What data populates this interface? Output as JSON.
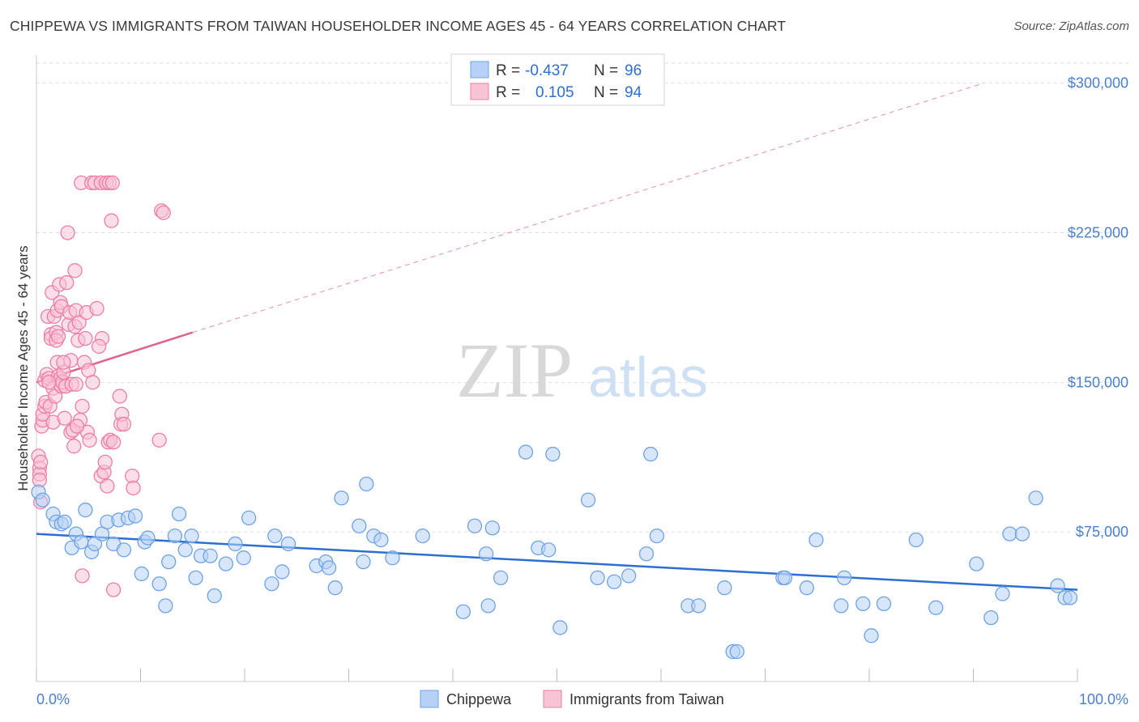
{
  "title": "CHIPPEWA VS IMMIGRANTS FROM TAIWAN HOUSEHOLDER INCOME AGES 45 - 64 YEARS CORRELATION CHART",
  "source": "Source: ZipAtlas.com",
  "watermark": {
    "zip": "ZIP",
    "atlas": "atlas"
  },
  "colors": {
    "blue": "#6fa3e8",
    "blue_fill": "#b6d1f5",
    "blue_line": "#2c6fd1",
    "pink": "#ee7fa3",
    "pink_fill": "#f8c3d5",
    "pink_line": "#e0618c",
    "grid": "#dedede",
    "axis_text": "#4a7fcf"
  },
  "legend": {
    "r_label": "R =",
    "n_label": "N =",
    "rows": [
      {
        "series": "Chippewa",
        "r": "-0.437",
        "n": "96"
      },
      {
        "series": "Immigrants from Taiwan",
        "r": "0.105",
        "n": "94"
      }
    ]
  },
  "bottom_legend": [
    "Chippewa",
    "Immigrants from Taiwan"
  ],
  "chart_data": {
    "type": "scatter",
    "xlabel": "",
    "ylabel": "Householder Income Ages 45 - 64 years",
    "xlim": [
      0,
      100
    ],
    "ylim": [
      0,
      310000
    ],
    "x_tick_labels": {
      "left": "0.0%",
      "right": "100.0%"
    },
    "y_ticks": [
      {
        "value": 75000,
        "label": "$75,000"
      },
      {
        "value": 150000,
        "label": "$150,000"
      },
      {
        "value": 225000,
        "label": "$225,000"
      },
      {
        "value": 300000,
        "label": "$300,000"
      }
    ],
    "series": [
      {
        "name": "Chippewa",
        "r": -0.437,
        "n": 96,
        "trend": {
          "x": [
            0,
            100
          ],
          "y": [
            74000,
            46000
          ],
          "dashed_extension": false
        },
        "points": [
          [
            0.2,
            95000
          ],
          [
            0.6,
            91000
          ],
          [
            1.6,
            84000
          ],
          [
            1.9,
            80000
          ],
          [
            2.4,
            79000
          ],
          [
            2.7,
            80000
          ],
          [
            3.4,
            67000
          ],
          [
            3.8,
            74000
          ],
          [
            4.3,
            70000
          ],
          [
            4.7,
            86000
          ],
          [
            5.3,
            65000
          ],
          [
            5.6,
            69000
          ],
          [
            6.3,
            74000
          ],
          [
            6.8,
            80000
          ],
          [
            7.4,
            69000
          ],
          [
            7.9,
            81000
          ],
          [
            8.4,
            66000
          ],
          [
            8.8,
            82000
          ],
          [
            9.5,
            83000
          ],
          [
            10.1,
            54000
          ],
          [
            10.4,
            70000
          ],
          [
            10.7,
            72000
          ],
          [
            11.8,
            49000
          ],
          [
            12.4,
            38000
          ],
          [
            12.7,
            60000
          ],
          [
            13.3,
            73000
          ],
          [
            13.7,
            84000
          ],
          [
            14.3,
            66000
          ],
          [
            14.9,
            73000
          ],
          [
            15.3,
            52000
          ],
          [
            15.8,
            63000
          ],
          [
            16.7,
            63000
          ],
          [
            17.1,
            43000
          ],
          [
            18.2,
            59000
          ],
          [
            19.1,
            69000
          ],
          [
            19.9,
            62000
          ],
          [
            20.4,
            82000
          ],
          [
            22.6,
            49000
          ],
          [
            22.9,
            73000
          ],
          [
            23.6,
            55000
          ],
          [
            24.2,
            69000
          ],
          [
            26.9,
            58000
          ],
          [
            27.8,
            60000
          ],
          [
            28.1,
            57000
          ],
          [
            28.7,
            47000
          ],
          [
            29.3,
            92000
          ],
          [
            31.0,
            78000
          ],
          [
            31.4,
            60000
          ],
          [
            31.7,
            99000
          ],
          [
            32.4,
            73000
          ],
          [
            33.1,
            71000
          ],
          [
            34.2,
            62000
          ],
          [
            37.1,
            73000
          ],
          [
            41.0,
            35000
          ],
          [
            42.1,
            78000
          ],
          [
            43.2,
            64000
          ],
          [
            43.4,
            38000
          ],
          [
            43.8,
            77000
          ],
          [
            44.6,
            52000
          ],
          [
            48.2,
            67000
          ],
          [
            49.2,
            66000
          ],
          [
            49.6,
            114000
          ],
          [
            50.3,
            27000
          ],
          [
            53.0,
            91000
          ],
          [
            53.9,
            52000
          ],
          [
            55.5,
            50000
          ],
          [
            56.9,
            53000
          ],
          [
            58.6,
            64000
          ],
          [
            59.6,
            73000
          ],
          [
            62.6,
            38000
          ],
          [
            63.6,
            38000
          ],
          [
            66.1,
            47000
          ],
          [
            66.9,
            15000
          ],
          [
            67.3,
            15000
          ],
          [
            71.7,
            52000
          ],
          [
            71.9,
            52000
          ],
          [
            74.0,
            47000
          ],
          [
            74.9,
            71000
          ],
          [
            77.3,
            38000
          ],
          [
            77.6,
            52000
          ],
          [
            79.4,
            39000
          ],
          [
            80.2,
            23000
          ],
          [
            81.4,
            39000
          ],
          [
            84.5,
            71000
          ],
          [
            86.4,
            37000
          ],
          [
            90.3,
            59000
          ],
          [
            91.7,
            32000
          ],
          [
            92.8,
            44000
          ],
          [
            93.5,
            74000
          ],
          [
            94.7,
            74000
          ],
          [
            96.0,
            92000
          ],
          [
            98.1,
            48000
          ],
          [
            98.8,
            42000
          ],
          [
            99.3,
            42000
          ],
          [
            47.0,
            115000
          ],
          [
            59.0,
            114000
          ]
        ]
      },
      {
        "name": "Immigrants from Taiwan",
        "r": 0.105,
        "n": 94,
        "trend": {
          "x": [
            0,
            15
          ],
          "y": [
            150000,
            175000
          ],
          "dashed_extension": true,
          "extension_to": [
            91,
            300000
          ]
        },
        "points": [
          [
            0.2,
            113000
          ],
          [
            0.3,
            107000
          ],
          [
            0.3,
            104000
          ],
          [
            0.3,
            101000
          ],
          [
            0.4,
            90000
          ],
          [
            0.5,
            128000
          ],
          [
            0.6,
            131000
          ],
          [
            0.6,
            134000
          ],
          [
            0.8,
            138000
          ],
          [
            0.8,
            151000
          ],
          [
            0.9,
            140000
          ],
          [
            1.0,
            154000
          ],
          [
            1.1,
            183000
          ],
          [
            1.2,
            152000
          ],
          [
            1.3,
            138000
          ],
          [
            1.4,
            174000
          ],
          [
            1.4,
            172000
          ],
          [
            1.5,
            195000
          ],
          [
            1.6,
            147000
          ],
          [
            1.6,
            130000
          ],
          [
            1.7,
            183000
          ],
          [
            1.8,
            143000
          ],
          [
            1.9,
            175000
          ],
          [
            1.9,
            171000
          ],
          [
            2.0,
            160000
          ],
          [
            2.0,
            186000
          ],
          [
            2.1,
            153000
          ],
          [
            2.1,
            173000
          ],
          [
            2.2,
            199000
          ],
          [
            2.3,
            152000
          ],
          [
            2.3,
            190000
          ],
          [
            2.4,
            188000
          ],
          [
            2.4,
            148000
          ],
          [
            2.5,
            150000
          ],
          [
            2.6,
            155000
          ],
          [
            2.7,
            132000
          ],
          [
            2.8,
            148000
          ],
          [
            2.9,
            200000
          ],
          [
            3.0,
            225000
          ],
          [
            3.1,
            179000
          ],
          [
            3.2,
            185000
          ],
          [
            3.3,
            161000
          ],
          [
            3.3,
            125000
          ],
          [
            3.4,
            149000
          ],
          [
            3.5,
            126000
          ],
          [
            3.6,
            118000
          ],
          [
            3.7,
            206000
          ],
          [
            3.7,
            178000
          ],
          [
            3.8,
            186000
          ],
          [
            3.8,
            149000
          ],
          [
            4.0,
            171000
          ],
          [
            4.1,
            180000
          ],
          [
            4.2,
            131000
          ],
          [
            4.3,
            250000
          ],
          [
            4.4,
            138000
          ],
          [
            4.4,
            53000
          ],
          [
            4.6,
            160000
          ],
          [
            4.7,
            172000
          ],
          [
            4.8,
            185000
          ],
          [
            4.9,
            125000
          ],
          [
            5.0,
            156000
          ],
          [
            5.1,
            121000
          ],
          [
            5.3,
            250000
          ],
          [
            5.6,
            250000
          ],
          [
            5.8,
            187000
          ],
          [
            6.2,
            103000
          ],
          [
            6.2,
            250000
          ],
          [
            6.3,
            172000
          ],
          [
            6.5,
            105000
          ],
          [
            6.6,
            110000
          ],
          [
            6.7,
            250000
          ],
          [
            6.9,
            120000
          ],
          [
            7.0,
            250000
          ],
          [
            7.1,
            121000
          ],
          [
            7.2,
            231000
          ],
          [
            7.3,
            250000
          ],
          [
            7.4,
            120000
          ],
          [
            7.4,
            46000
          ],
          [
            8.0,
            143000
          ],
          [
            8.1,
            129000
          ],
          [
            8.2,
            134000
          ],
          [
            8.4,
            129000
          ],
          [
            9.2,
            103000
          ],
          [
            9.3,
            97000
          ],
          [
            11.8,
            121000
          ],
          [
            12.0,
            236000
          ],
          [
            12.2,
            235000
          ],
          [
            0.4,
            110000
          ],
          [
            1.2,
            150000
          ],
          [
            2.6,
            160000
          ],
          [
            3.9,
            128000
          ],
          [
            5.4,
            150000
          ],
          [
            6.0,
            168000
          ],
          [
            6.8,
            98000
          ]
        ]
      }
    ]
  }
}
